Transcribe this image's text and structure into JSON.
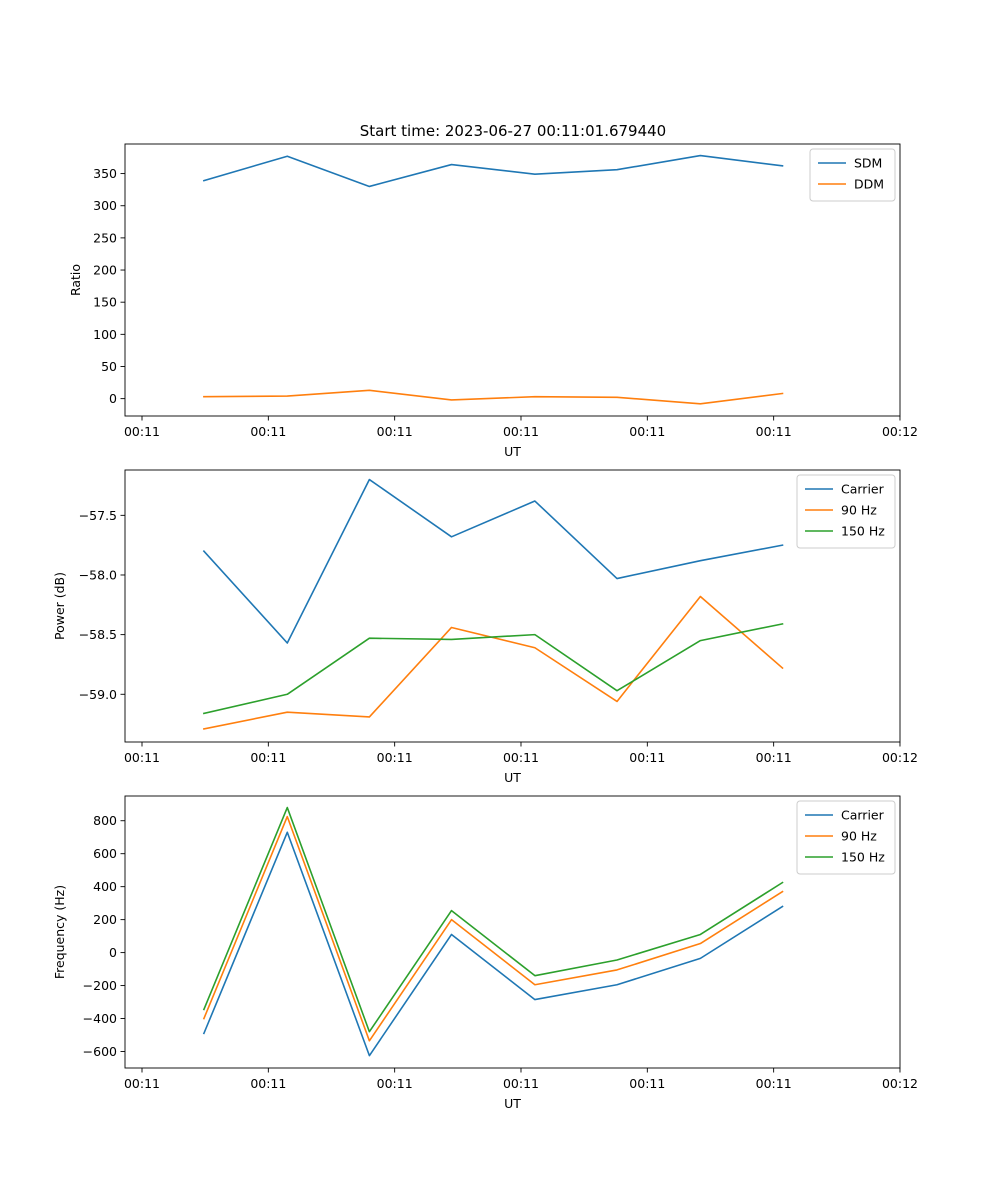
{
  "title": "Start time: 2023-06-27 00:11:01.679440",
  "chart_data": [
    {
      "type": "line",
      "xlabel": "UT",
      "ylabel": "Ratio",
      "xlim": [
        0,
        6
      ],
      "x_ticks": [
        0,
        1,
        2,
        3,
        4,
        5,
        6
      ],
      "x_tick_labels": [
        "00:11",
        "00:11",
        "00:11",
        "00:11",
        "00:11",
        "00:11",
        "00:12"
      ],
      "ylim": [
        -27,
        396
      ],
      "y_ticks": [
        0,
        50,
        100,
        150,
        200,
        250,
        300,
        350
      ],
      "y_tick_labels": [
        "0",
        "50",
        "100",
        "150",
        "200",
        "250",
        "300",
        "350"
      ],
      "legend": "top-right",
      "grid": false,
      "x": [
        0.49,
        1.15,
        1.8,
        2.45,
        3.11,
        3.76,
        4.42,
        5.07
      ],
      "series": [
        {
          "name": "SDM",
          "color": "#1f77b4",
          "values": [
            339,
            377,
            330,
            364,
            349,
            356,
            378,
            362
          ]
        },
        {
          "name": "DDM",
          "color": "#ff7f0e",
          "values": [
            3,
            4,
            13,
            -2,
            3,
            2,
            -8,
            8
          ]
        }
      ]
    },
    {
      "type": "line",
      "xlabel": "UT",
      "ylabel": "Power (dB)",
      "xlim": [
        0,
        6
      ],
      "x_ticks": [
        0,
        1,
        2,
        3,
        4,
        5,
        6
      ],
      "x_tick_labels": [
        "00:11",
        "00:11",
        "00:11",
        "00:11",
        "00:11",
        "00:11",
        "00:12"
      ],
      "ylim": [
        -59.4,
        -57.12
      ],
      "y_ticks": [
        -59.0,
        -58.5,
        -58.0,
        -57.5
      ],
      "y_tick_labels": [
        "−59.0",
        "−58.5",
        "−58.0",
        "−57.5"
      ],
      "legend": "top-right",
      "grid": false,
      "x": [
        0.49,
        1.15,
        1.8,
        2.45,
        3.11,
        3.76,
        4.42,
        5.07
      ],
      "series": [
        {
          "name": "Carrier",
          "color": "#1f77b4",
          "values": [
            -57.8,
            -58.57,
            -57.2,
            -57.68,
            -57.38,
            -58.03,
            -57.88,
            -57.75
          ]
        },
        {
          "name": "90 Hz",
          "color": "#ff7f0e",
          "values": [
            -59.29,
            -59.15,
            -59.19,
            -58.44,
            -58.61,
            -59.06,
            -58.18,
            -58.78
          ]
        },
        {
          "name": "150 Hz",
          "color": "#2ca02c",
          "values": [
            -59.16,
            -59.0,
            -58.53,
            -58.54,
            -58.5,
            -58.97,
            -58.55,
            -58.41
          ]
        }
      ]
    },
    {
      "type": "line",
      "xlabel": "UT",
      "ylabel": "Frequency (Hz)",
      "xlim": [
        0,
        6
      ],
      "x_ticks": [
        0,
        1,
        2,
        3,
        4,
        5,
        6
      ],
      "x_tick_labels": [
        "00:11",
        "00:11",
        "00:11",
        "00:11",
        "00:11",
        "00:11",
        "00:12"
      ],
      "ylim": [
        -700,
        950
      ],
      "y_ticks": [
        -600,
        -400,
        -200,
        0,
        200,
        400,
        600,
        800
      ],
      "y_tick_labels": [
        "−600",
        "−400",
        "−200",
        "0",
        "200",
        "400",
        "600",
        "800"
      ],
      "legend": "top-right",
      "grid": false,
      "x": [
        0.49,
        1.15,
        1.8,
        2.45,
        3.11,
        3.76,
        4.42,
        5.07
      ],
      "series": [
        {
          "name": "Carrier",
          "color": "#1f77b4",
          "values": [
            -490,
            730,
            -625,
            110,
            -285,
            -195,
            -35,
            280
          ]
        },
        {
          "name": "90 Hz",
          "color": "#ff7f0e",
          "values": [
            -400,
            825,
            -535,
            200,
            -195,
            -105,
            55,
            370
          ]
        },
        {
          "name": "150 Hz",
          "color": "#2ca02c",
          "values": [
            -345,
            880,
            -480,
            255,
            -140,
            -45,
            110,
            425
          ]
        }
      ]
    }
  ]
}
